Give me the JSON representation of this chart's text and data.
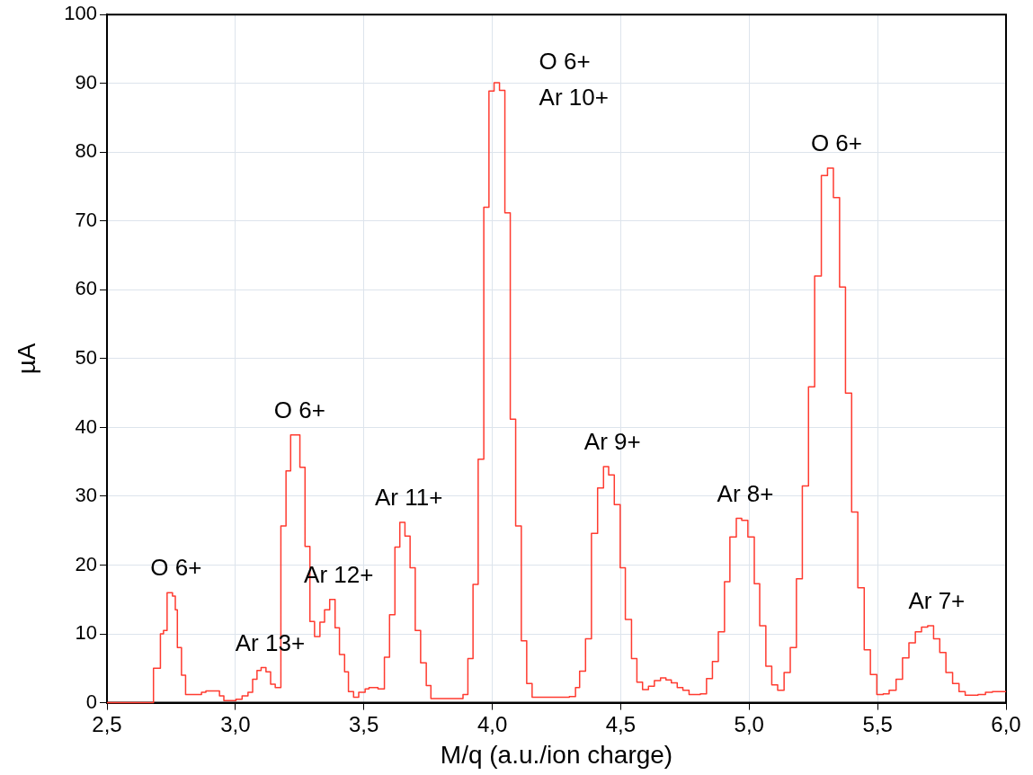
{
  "chart_data": {
    "type": "step",
    "xlabel": "M/q (a.u./ion charge)",
    "ylabel": "µA",
    "x": [
      2.5,
      2.681,
      2.708,
      2.72,
      2.734,
      2.755,
      2.766,
      2.774,
      2.79,
      2.806,
      2.868,
      2.885,
      2.938,
      2.955,
      3.002,
      3.026,
      3.049,
      3.067,
      3.084,
      3.1,
      3.119,
      3.137,
      3.155,
      3.177,
      3.197,
      3.215,
      3.251,
      3.271,
      3.29,
      3.308,
      3.329,
      3.347,
      3.367,
      3.388,
      3.405,
      3.425,
      3.44,
      3.46,
      3.48,
      3.505,
      3.52,
      3.555,
      3.58,
      3.6,
      3.621,
      3.64,
      3.66,
      3.68,
      3.7,
      3.721,
      3.743,
      3.761,
      3.886,
      3.905,
      3.925,
      3.945,
      3.967,
      3.987,
      4.007,
      4.028,
      4.049,
      4.07,
      4.091,
      4.113,
      4.134,
      4.155,
      4.3,
      4.324,
      4.34,
      4.363,
      4.386,
      4.41,
      4.433,
      4.453,
      4.475,
      4.498,
      4.518,
      4.542,
      4.563,
      4.585,
      4.608,
      4.631,
      4.655,
      4.676,
      4.697,
      4.72,
      4.742,
      4.766,
      4.81,
      4.834,
      4.857,
      4.88,
      4.904,
      4.925,
      4.95,
      4.971,
      4.995,
      5.02,
      5.041,
      5.065,
      5.088,
      5.111,
      5.136,
      5.16,
      5.184,
      5.207,
      5.231,
      5.255,
      5.281,
      5.305,
      5.328,
      5.352,
      5.375,
      5.399,
      5.423,
      5.448,
      5.472,
      5.497,
      5.522,
      5.545,
      5.572,
      5.597,
      5.622,
      5.647,
      5.671,
      5.695,
      5.718,
      5.742,
      5.766,
      5.792,
      5.817,
      5.841,
      5.891,
      5.92,
      5.947,
      6.0
    ],
    "series": [
      {
        "color": "#ff3b30",
        "values": [
          0,
          5,
          10,
          10.5,
          16,
          15.5,
          13.5,
          8,
          4,
          1.2,
          1.5,
          1.7,
          1.0,
          0.3,
          0.5,
          1.0,
          1.5,
          3.4,
          4.7,
          5.1,
          4.5,
          2.7,
          2.2,
          25.7,
          33.7,
          38.9,
          34.2,
          22.7,
          11.8,
          9.6,
          11.7,
          13.5,
          15,
          10.9,
          7,
          4.5,
          1.6,
          0.8,
          1.5,
          2.0,
          2.2,
          2.0,
          6.6,
          12.8,
          22.6,
          26.2,
          24.2,
          19.6,
          10.5,
          5.8,
          2.5,
          0.6,
          1.2,
          6.4,
          17.2,
          35.4,
          72,
          88.9,
          90.1,
          89,
          71.2,
          41.2,
          25.7,
          9,
          2.8,
          0.8,
          0.9,
          2.2,
          4.6,
          9.3,
          24.6,
          31.2,
          34.3,
          33.1,
          28.8,
          19.6,
          12.1,
          6.4,
          3,
          1.9,
          2.4,
          3.2,
          3.6,
          3.3,
          2.9,
          2.2,
          1.8,
          1.2,
          1.3,
          3.5,
          6,
          10.3,
          17.6,
          24.1,
          26.8,
          26.5,
          24.1,
          17.3,
          11.2,
          5.3,
          2.6,
          1.8,
          4.4,
          8,
          18,
          31.5,
          45.9,
          62,
          76.6,
          77.7,
          73.4,
          60.4,
          45,
          27.7,
          16.7,
          7.7,
          4.1,
          1.2,
          1.3,
          1.8,
          3.4,
          6.5,
          8.7,
          10.3,
          11,
          11.2,
          9.3,
          7.3,
          4.4,
          2.8,
          1.6,
          1.1,
          1.2,
          1.5,
          1.6,
          1.6
        ]
      }
    ],
    "xlim": [
      2.5,
      6.0
    ],
    "xticks": [
      {
        "value": 2.5,
        "label": "2,5"
      },
      {
        "value": 3.0,
        "label": "3,0"
      },
      {
        "value": 3.5,
        "label": "3,5"
      },
      {
        "value": 4.0,
        "label": "4,0"
      },
      {
        "value": 4.5,
        "label": "4,5"
      },
      {
        "value": 5.0,
        "label": "5,0"
      },
      {
        "value": 5.5,
        "label": "5,5"
      },
      {
        "value": 6.0,
        "label": "6,0"
      }
    ],
    "ylim": [
      0,
      100
    ],
    "yticks": [
      0,
      10,
      20,
      30,
      40,
      50,
      60,
      70,
      80,
      90,
      100
    ],
    "grid": true,
    "annotations": [
      {
        "text": "O 6+",
        "x": 2.734,
        "y": 16
      },
      {
        "text": "Ar 13+",
        "x": 3.1,
        "y": 5.1
      },
      {
        "text": "O 6+",
        "x": 3.215,
        "y": 38.9
      },
      {
        "text": "Ar 12+",
        "x": 3.367,
        "y": 15
      },
      {
        "text": "Ar 11+",
        "x": 3.64,
        "y": 26.2
      },
      {
        "text": "O 6+",
        "x": 4.007,
        "y": 90.1
      },
      {
        "text": "Ar 10+",
        "x": 4.007,
        "y": 90.1
      },
      {
        "text": "Ar 9+",
        "x": 4.433,
        "y": 34.3
      },
      {
        "text": "Ar 8+",
        "x": 4.95,
        "y": 26.8
      },
      {
        "text": "O 6+",
        "x": 5.305,
        "y": 77.7
      },
      {
        "text": "Ar 7+",
        "x": 5.695,
        "y": 11.2
      }
    ]
  }
}
